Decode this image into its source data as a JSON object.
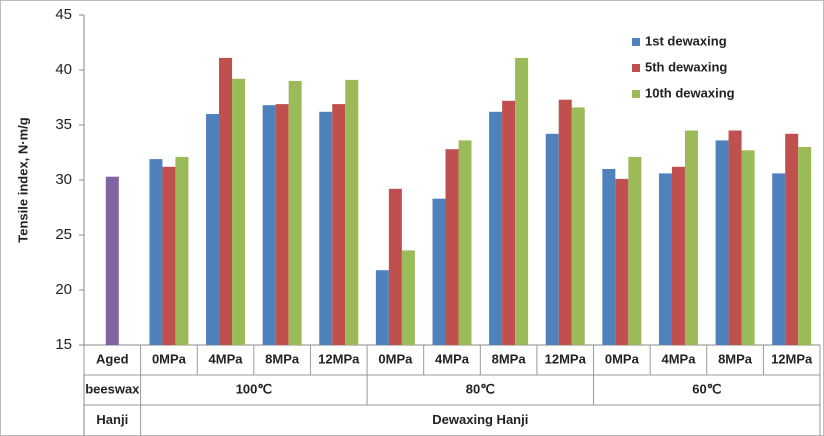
{
  "chart_data": {
    "type": "bar",
    "y_label": "Tensile index, N·m/g",
    "categories": [
      "Aged",
      "0MPa",
      "4MPa",
      "8MPa",
      "12MPa",
      "0MPa",
      "4MPa",
      "8MPa",
      "12MPa",
      "0MPa",
      "4MPa",
      "8MPa",
      "12MPa"
    ],
    "groups": [
      {
        "label": "beeswax",
        "size": 1
      },
      {
        "label": "100℃",
        "size": 4
      },
      {
        "label": "80℃",
        "size": 4
      },
      {
        "label": "60℃",
        "size": 4
      }
    ],
    "supergroups": [
      {
        "label": "Hanji",
        "size": 1
      },
      {
        "label": "Dewaxing Hanji",
        "size": 12
      }
    ],
    "series": [
      {
        "color": "#8064a2",
        "values": [
          30.3,
          null,
          null,
          null,
          null,
          null,
          null,
          null,
          null,
          null,
          null,
          null,
          null
        ]
      },
      {
        "name": "1st dewaxing",
        "color": "#4f81bd",
        "values": [
          null,
          31.9,
          36.0,
          36.8,
          36.2,
          21.8,
          28.3,
          36.2,
          34.2,
          31.0,
          30.6,
          33.6,
          30.6
        ]
      },
      {
        "name": "5th dewaxing",
        "color": "#c0504d",
        "values": [
          null,
          31.2,
          41.1,
          36.9,
          36.9,
          29.2,
          32.8,
          37.2,
          37.3,
          30.1,
          31.2,
          34.5,
          34.2
        ]
      },
      {
        "name": "10th dewaxing",
        "color": "#9bbb59",
        "values": [
          null,
          32.1,
          39.2,
          39.0,
          39.1,
          23.6,
          33.6,
          41.1,
          36.6,
          32.1,
          34.5,
          32.7,
          33.0
        ]
      }
    ],
    "ylim": [
      15,
      45
    ],
    "yticks": [
      15,
      20,
      25,
      30,
      35,
      40,
      45
    ],
    "grid": false,
    "legend": "top-right"
  }
}
